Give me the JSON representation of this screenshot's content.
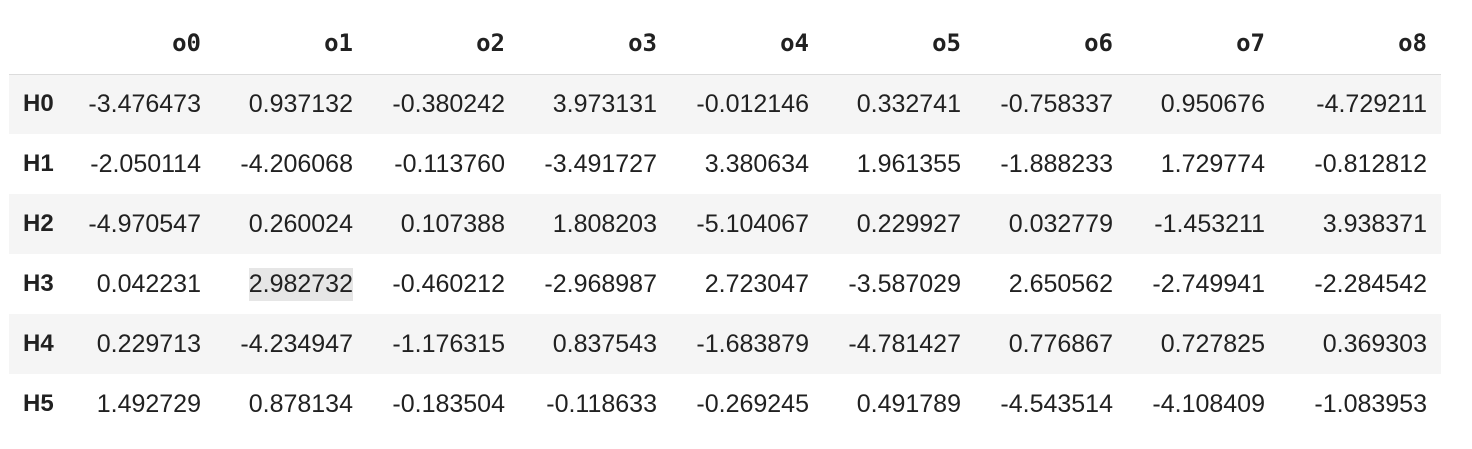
{
  "table": {
    "corner": "",
    "columns": [
      "o0",
      "o1",
      "o2",
      "o3",
      "o4",
      "o5",
      "o6",
      "o7",
      "o8"
    ],
    "rows": [
      {
        "label": "H0",
        "values": [
          "-3.476473",
          "0.937132",
          "-0.380242",
          "3.973131",
          "-0.012146",
          "0.332741",
          "-0.758337",
          "0.950676",
          "-4.729211"
        ]
      },
      {
        "label": "H1",
        "values": [
          "-2.050114",
          "-4.206068",
          "-0.113760",
          "-3.491727",
          "3.380634",
          "1.961355",
          "-1.888233",
          "1.729774",
          "-0.812812"
        ]
      },
      {
        "label": "H2",
        "values": [
          "-4.970547",
          "0.260024",
          "0.107388",
          "1.808203",
          "-5.104067",
          "0.229927",
          "0.032779",
          "-1.453211",
          "3.938371"
        ]
      },
      {
        "label": "H3",
        "values": [
          "0.042231",
          "2.982732",
          "-0.460212",
          "-2.968987",
          "2.723047",
          "-3.587029",
          "2.650562",
          "-2.749941",
          "-2.284542"
        ]
      },
      {
        "label": "H4",
        "values": [
          "0.229713",
          "-4.234947",
          "-1.176315",
          "0.837543",
          "-1.683879",
          "-4.781427",
          "0.776867",
          "0.727825",
          "0.369303"
        ]
      },
      {
        "label": "H5",
        "values": [
          "1.492729",
          "0.878134",
          "-0.183504",
          "-0.118633",
          "-0.269245",
          "0.491789",
          "-4.543514",
          "-4.108409",
          "-1.083953"
        ]
      }
    ],
    "highlighted_cell": {
      "row": "H3",
      "column": "o1"
    }
  },
  "colors": {
    "stripe": "#f5f5f5",
    "background": "#ffffff",
    "highlight": "#e6e6e6",
    "text": "#212121",
    "header_rule": "#dcdcdc"
  }
}
